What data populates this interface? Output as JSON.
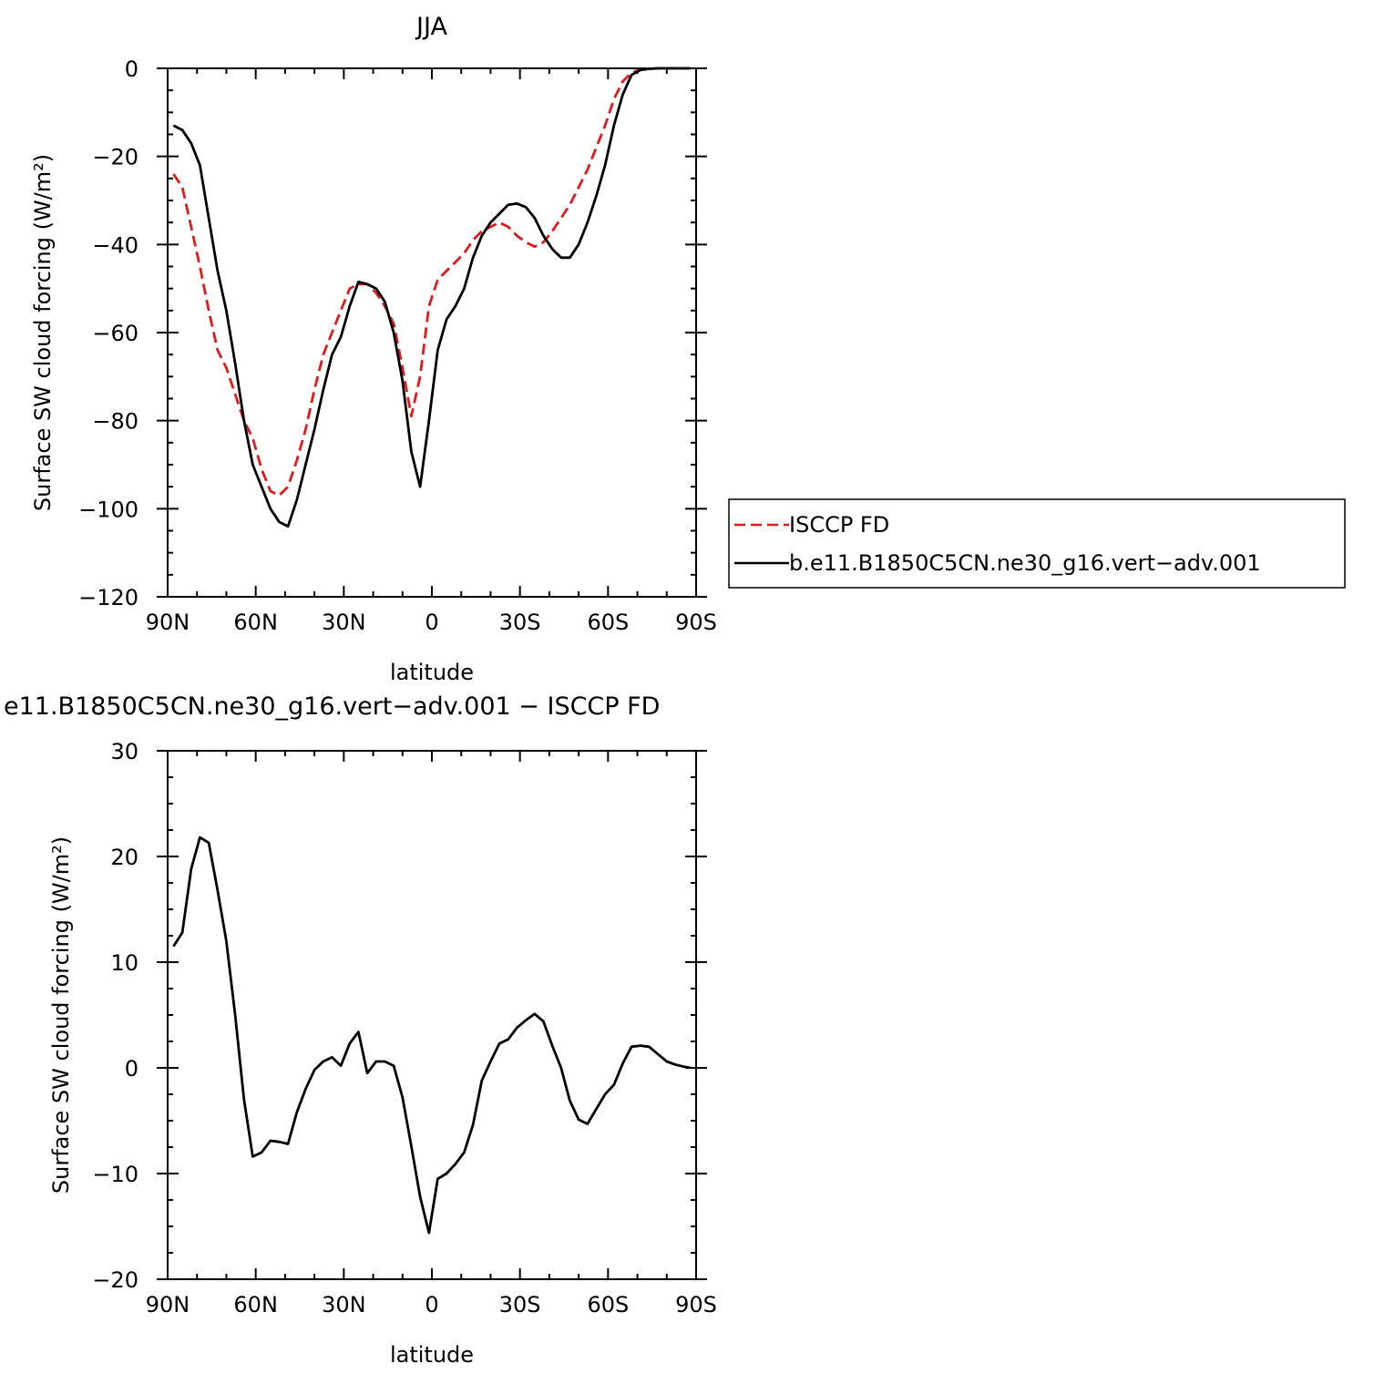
{
  "chart_data": [
    {
      "type": "line",
      "title": "JJA",
      "xlabel": "latitude",
      "ylabel": "Surface SW cloud forcing (W/m²)",
      "xlim": [
        90,
        -90
      ],
      "ylim": [
        -120,
        0
      ],
      "xticks": [
        90,
        60,
        30,
        0,
        -30,
        -60,
        -90
      ],
      "xtick_labels": [
        "90N",
        "60N",
        "30N",
        "0",
        "30S",
        "60S",
        "90S"
      ],
      "yticks": [
        0,
        -20,
        -40,
        -60,
        -80,
        -100,
        -120
      ],
      "ytick_labels": [
        "0",
        "−20",
        "−40",
        "−60",
        "−80",
        "−100",
        "−120"
      ],
      "grid": false,
      "legend_position": "right",
      "series": [
        {
          "name": "ISCCP FD",
          "color": "#e31a1c",
          "dash": "dashed",
          "x": [
            88,
            85,
            82,
            79,
            76,
            73,
            70,
            67,
            64,
            61,
            58,
            55,
            52,
            49,
            46,
            43,
            40,
            37,
            34,
            31,
            28,
            25,
            22,
            19,
            16,
            13,
            10,
            7,
            4,
            1,
            -2,
            -5,
            -8,
            -11,
            -14,
            -17,
            -20,
            -23,
            -26,
            -29,
            -32,
            -35,
            -38,
            -41,
            -44,
            -47,
            -50,
            -53,
            -56,
            -59,
            -62,
            -65,
            -68,
            -71,
            -74,
            -77,
            -80,
            -83,
            -86,
            -88
          ],
          "y": [
            -24,
            -27,
            -36,
            -45,
            -55,
            -64,
            -68,
            -74,
            -80,
            -84,
            -91,
            -96,
            -97,
            -95,
            -89,
            -82,
            -73,
            -65,
            -60,
            -55,
            -50,
            -49,
            -49,
            -51,
            -54,
            -58,
            -68,
            -79,
            -70,
            -54,
            -48,
            -46,
            -44,
            -42,
            -39,
            -37,
            -36,
            -35,
            -36,
            -38,
            -39.5,
            -40.5,
            -39.5,
            -37,
            -34,
            -31,
            -27,
            -23,
            -18,
            -13,
            -7,
            -3,
            -1,
            -0.3,
            -0.1,
            0,
            0,
            0,
            0,
            0
          ]
        },
        {
          "name": "b.e11.B1850C5CN.ne30_g16.vert−adv.001",
          "color": "#000000",
          "dash": "solid",
          "x": [
            88,
            85,
            82,
            79,
            76,
            73,
            70,
            67,
            64,
            61,
            58,
            55,
            52,
            49,
            46,
            43,
            40,
            37,
            34,
            31,
            28,
            25,
            22,
            19,
            16,
            13,
            10,
            7,
            4,
            1,
            -2,
            -5,
            -8,
            -11,
            -14,
            -17,
            -20,
            -23,
            -26,
            -29,
            -32,
            -35,
            -38,
            -41,
            -44,
            -47,
            -50,
            -53,
            -56,
            -59,
            -62,
            -65,
            -68,
            -71,
            -74,
            -77,
            -80,
            -83,
            -86,
            -88
          ],
          "y": [
            -13,
            -14,
            -17,
            -22,
            -34,
            -46,
            -55,
            -67,
            -80,
            -90,
            -95,
            -100,
            -103,
            -104,
            -98,
            -90,
            -82,
            -73,
            -65,
            -61,
            -54,
            -48.5,
            -49,
            -50,
            -53,
            -60,
            -71,
            -87,
            -95,
            -80,
            -64,
            -57,
            -54,
            -50,
            -43,
            -38,
            -35,
            -33,
            -31,
            -30.7,
            -31.5,
            -34,
            -38,
            -41,
            -43,
            -43,
            -40,
            -35,
            -29,
            -22,
            -13,
            -6,
            -1.5,
            -0.4,
            -0.1,
            0,
            0,
            0,
            0,
            0
          ]
        }
      ]
    },
    {
      "type": "line",
      "title": "e11.B1850C5CN.ne30_g16.vert−adv.001 − ISCCP FD",
      "xlabel": "latitude",
      "ylabel": "Surface SW cloud forcing (W/m²)",
      "xlim": [
        90,
        -90
      ],
      "ylim": [
        -20,
        30
      ],
      "xticks": [
        90,
        60,
        30,
        0,
        -30,
        -60,
        -90
      ],
      "xtick_labels": [
        "90N",
        "60N",
        "30N",
        "0",
        "30S",
        "60S",
        "90S"
      ],
      "yticks": [
        30,
        20,
        10,
        0,
        -10,
        -20
      ],
      "ytick_labels": [
        "30",
        "20",
        "10",
        "0",
        "−10",
        "−20"
      ],
      "grid": false,
      "series": [
        {
          "color": "#000000",
          "dash": "solid",
          "x": [
            88,
            85,
            82,
            79,
            76,
            73,
            70,
            67,
            64,
            61,
            58,
            55,
            52,
            49,
            46,
            43,
            40,
            37,
            34,
            31,
            28,
            25,
            22,
            19,
            16,
            13,
            10,
            7,
            4,
            1,
            -2,
            -5,
            -8,
            -11,
            -14,
            -17,
            -20,
            -23,
            -26,
            -29,
            -32,
            -35,
            -38,
            -41,
            -44,
            -47,
            -50,
            -53,
            -56,
            -59,
            -62,
            -65,
            -68,
            -71,
            -74,
            -77,
            -80,
            -83,
            -86,
            -88
          ],
          "y": [
            11.5,
            12.8,
            18.8,
            21.8,
            21.3,
            16.8,
            12.0,
            5.0,
            -3.0,
            -8.4,
            -8.0,
            -6.9,
            -7.0,
            -7.2,
            -4.2,
            -2.0,
            -0.2,
            0.6,
            1.0,
            0.2,
            2.3,
            3.4,
            -0.5,
            0.6,
            0.6,
            0.2,
            -2.8,
            -7.4,
            -12.2,
            -15.6,
            -10.5,
            -10.0,
            -9.1,
            -8.0,
            -5.4,
            -1.2,
            0.6,
            2.3,
            2.7,
            3.8,
            4.5,
            5.1,
            4.4,
            2.1,
            0.0,
            -3.1,
            -4.9,
            -5.3,
            -3.9,
            -2.5,
            -1.6,
            0.4,
            2.0,
            2.1,
            2.0,
            1.3,
            0.6,
            0.3,
            0.1,
            0.0
          ]
        }
      ]
    }
  ]
}
